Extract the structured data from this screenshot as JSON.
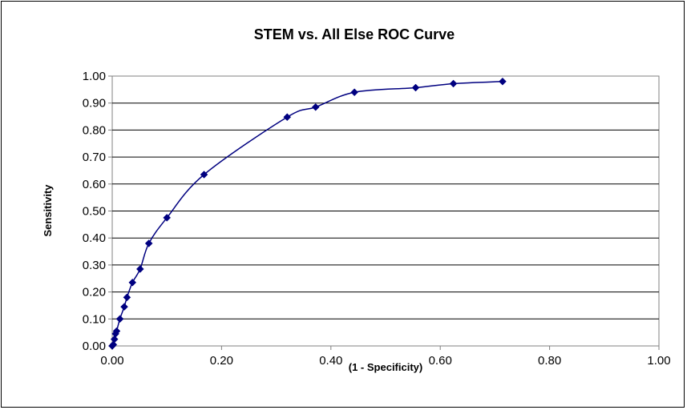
{
  "chart_data": {
    "type": "scatter",
    "title": "STEM vs. All Else ROC Curve",
    "xlabel": "(1 - Specificity)",
    "ylabel": "Sensitivity",
    "xlim": [
      0,
      1
    ],
    "ylim": [
      0,
      1
    ],
    "x_ticks": [
      "0.00",
      "0.20",
      "0.40",
      "0.60",
      "0.80",
      "1.00"
    ],
    "y_ticks": [
      "0.00",
      "0.10",
      "0.20",
      "0.30",
      "0.40",
      "0.50",
      "0.60",
      "0.70",
      "0.80",
      "0.90",
      "1.00"
    ],
    "grid": "horizontal",
    "legend": "none",
    "marker": "diamond",
    "line": "smoothed",
    "color": "#000080",
    "series": [
      {
        "x": [
          0.0,
          0.002,
          0.004,
          0.006,
          0.008,
          0.014,
          0.022,
          0.027,
          0.037,
          0.051,
          0.067,
          0.1,
          0.168,
          0.32,
          0.372,
          0.443,
          0.555,
          0.624,
          0.714
        ],
        "y": [
          0.0,
          0.005,
          0.025,
          0.045,
          0.055,
          0.1,
          0.145,
          0.18,
          0.235,
          0.285,
          0.38,
          0.475,
          0.635,
          0.848,
          0.885,
          0.94,
          0.957,
          0.972,
          0.98
        ]
      }
    ]
  }
}
